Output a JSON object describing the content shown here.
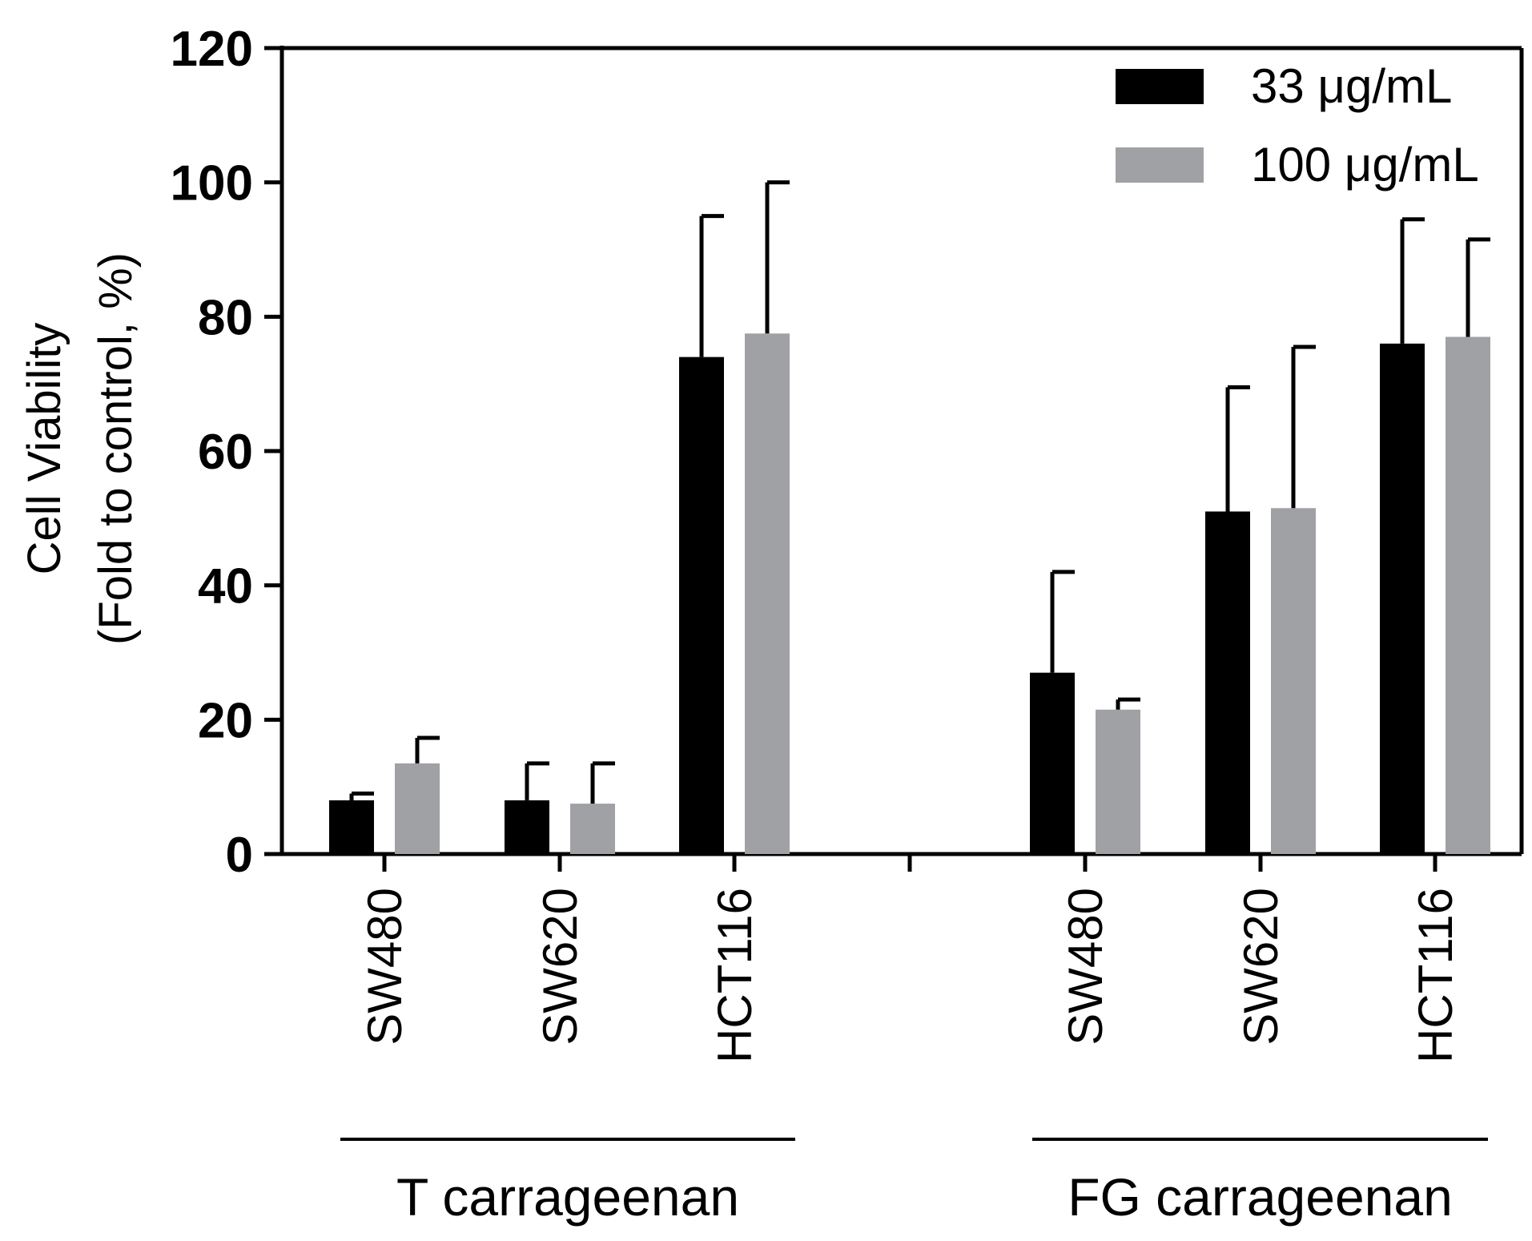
{
  "chart_data": {
    "type": "bar",
    "title": "",
    "ylabel_lines": [
      "Cell Viability",
      "(Fold to control, %)"
    ],
    "xlabel": "",
    "ylim": [
      0,
      120
    ],
    "yticks": [
      "0",
      "20",
      "40",
      "60",
      "80",
      "100",
      "120"
    ],
    "groups": [
      {
        "name": "T carrageenan",
        "categories": [
          "SW480",
          "SW620",
          "HCT116"
        ]
      },
      {
        "name": "FG carrageenan",
        "categories": [
          "SW480",
          "SW620",
          "HCT116"
        ]
      }
    ],
    "series": [
      {
        "name": "33 μg/mL",
        "color": "#000000",
        "values": [
          8,
          8,
          74,
          27,
          51,
          76
        ],
        "errors": [
          1,
          5.5,
          21,
          15,
          18.5,
          18.5
        ]
      },
      {
        "name": "100 μg/mL",
        "color": "#a0a1a4",
        "values": [
          13.5,
          7.5,
          77.5,
          21.5,
          51.5,
          77
        ],
        "errors": [
          3.8,
          6,
          22.5,
          1.5,
          24,
          14.5
        ]
      }
    ],
    "legend_position": "top-right"
  }
}
